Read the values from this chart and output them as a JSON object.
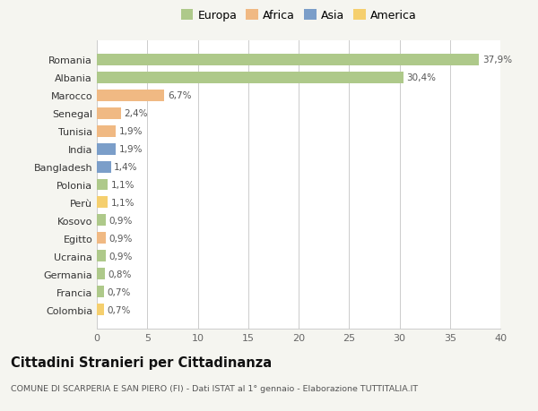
{
  "categories": [
    "Romania",
    "Albania",
    "Marocco",
    "Senegal",
    "Tunisia",
    "India",
    "Bangladesh",
    "Polonia",
    "Perù",
    "Kosovo",
    "Egitto",
    "Ucraina",
    "Germania",
    "Francia",
    "Colombia"
  ],
  "values": [
    37.9,
    30.4,
    6.7,
    2.4,
    1.9,
    1.9,
    1.4,
    1.1,
    1.1,
    0.9,
    0.9,
    0.9,
    0.8,
    0.7,
    0.7
  ],
  "labels": [
    "37,9%",
    "30,4%",
    "6,7%",
    "2,4%",
    "1,9%",
    "1,9%",
    "1,4%",
    "1,1%",
    "1,1%",
    "0,9%",
    "0,9%",
    "0,9%",
    "0,8%",
    "0,7%",
    "0,7%"
  ],
  "colors": [
    "#aec98a",
    "#aec98a",
    "#f0b983",
    "#f0b983",
    "#f0b983",
    "#7b9ec9",
    "#7b9ec9",
    "#aec98a",
    "#f5cf6e",
    "#aec98a",
    "#f0b983",
    "#aec98a",
    "#aec98a",
    "#aec98a",
    "#f5cf6e"
  ],
  "legend_labels": [
    "Europa",
    "Africa",
    "Asia",
    "America"
  ],
  "legend_colors": [
    "#aec98a",
    "#f0b983",
    "#7b9ec9",
    "#f5cf6e"
  ],
  "title": "Cittadini Stranieri per Cittadinanza",
  "subtitle": "COMUNE DI SCARPERIA E SAN PIERO (FI) - Dati ISTAT al 1° gennaio - Elaborazione TUTTITALIA.IT",
  "xlim": [
    0,
    40
  ],
  "xticks": [
    0,
    5,
    10,
    15,
    20,
    25,
    30,
    35,
    40
  ],
  "bg_color": "#f5f5f0",
  "plot_bg_color": "#ffffff"
}
